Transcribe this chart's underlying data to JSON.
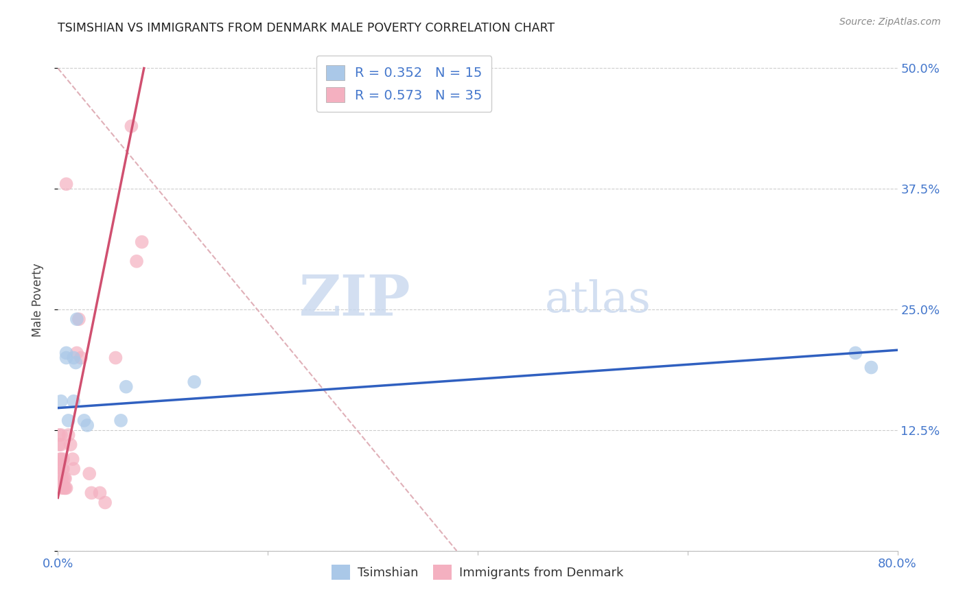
{
  "title": "TSIMSHIAN VS IMMIGRANTS FROM DENMARK MALE POVERTY CORRELATION CHART",
  "source": "Source: ZipAtlas.com",
  "ylabel_label": "Male Poverty",
  "xlim": [
    0,
    0.8
  ],
  "ylim": [
    0.0,
    0.52
  ],
  "xticks": [
    0.0,
    0.2,
    0.4,
    0.6,
    0.8
  ],
  "xtick_labels": [
    "0.0%",
    "",
    "",
    "",
    "80.0%"
  ],
  "ytick_vals": [
    0.0,
    0.125,
    0.25,
    0.375,
    0.5
  ],
  "ytick_labels_right": [
    "",
    "12.5%",
    "25.0%",
    "37.5%",
    "50.0%"
  ],
  "grid_color": "#cccccc",
  "watermark_zip": "ZIP",
  "watermark_atlas": "atlas",
  "legend1_r": "R = 0.352",
  "legend1_n": "N = 15",
  "legend2_r": "R = 0.573",
  "legend2_n": "N = 35",
  "tsimshian_color": "#aac8e8",
  "denmark_color": "#f4b0c0",
  "line_blue": "#3060c0",
  "line_pink": "#d05070",
  "line_dashed_color": "#e0b0b8",
  "tsimshian_x": [
    0.003,
    0.008,
    0.008,
    0.01,
    0.015,
    0.015,
    0.017,
    0.018,
    0.025,
    0.028,
    0.06,
    0.065,
    0.13,
    0.76,
    0.775
  ],
  "tsimshian_y": [
    0.155,
    0.205,
    0.2,
    0.135,
    0.155,
    0.2,
    0.195,
    0.24,
    0.135,
    0.13,
    0.135,
    0.17,
    0.175,
    0.205,
    0.19
  ],
  "denmark_x": [
    0.001,
    0.001,
    0.002,
    0.002,
    0.002,
    0.002,
    0.003,
    0.003,
    0.003,
    0.004,
    0.004,
    0.004,
    0.005,
    0.005,
    0.006,
    0.006,
    0.007,
    0.007,
    0.008,
    0.008,
    0.01,
    0.012,
    0.014,
    0.015,
    0.018,
    0.02,
    0.022,
    0.03,
    0.032,
    0.04,
    0.045,
    0.055,
    0.07,
    0.075,
    0.08
  ],
  "denmark_y": [
    0.12,
    0.11,
    0.095,
    0.09,
    0.08,
    0.07,
    0.12,
    0.11,
    0.095,
    0.085,
    0.075,
    0.065,
    0.095,
    0.085,
    0.075,
    0.065,
    0.075,
    0.065,
    0.065,
    0.38,
    0.12,
    0.11,
    0.095,
    0.085,
    0.205,
    0.24,
    0.2,
    0.08,
    0.06,
    0.06,
    0.05,
    0.2,
    0.44,
    0.3,
    0.32
  ],
  "blue_trend_x": [
    0.0,
    0.8
  ],
  "blue_trend_y": [
    0.148,
    0.208
  ],
  "pink_trend_x": [
    0.0,
    0.082
  ],
  "pink_trend_y": [
    0.055,
    0.5
  ],
  "dashed_trend_x": [
    0.0,
    0.38
  ],
  "dashed_trend_y": [
    0.5,
    0.0
  ]
}
